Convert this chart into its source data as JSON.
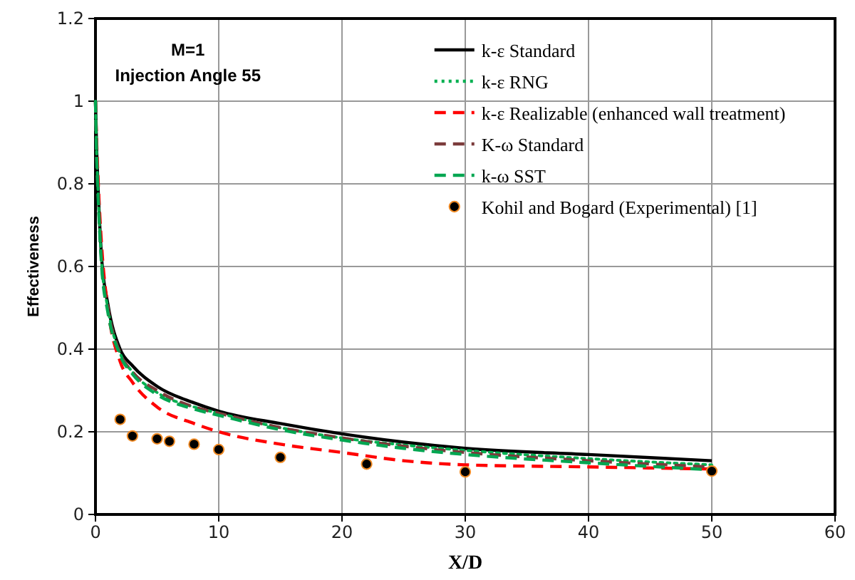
{
  "chart_data": {
    "type": "line",
    "title": "M=1",
    "subtitle": "Injection Angle 55",
    "xlabel": "X/D",
    "ylabel": "Effectiveness",
    "xlim": [
      0,
      60
    ],
    "xticks": [
      0,
      10,
      20,
      30,
      40,
      50,
      60
    ],
    "ylim": [
      0,
      1.2
    ],
    "yticks": [
      0,
      0.2,
      0.4,
      0.6,
      0.8,
      1,
      1.2
    ],
    "grid": true,
    "legend": "top right",
    "series": [
      {
        "name": "k-ε  Standard",
        "color": "#000000",
        "line_style": "solid",
        "x": [
          0,
          0.1,
          0.2,
          0.5,
          1,
          2,
          3,
          5,
          8,
          10,
          15,
          20,
          25,
          30,
          40,
          50
        ],
        "values": [
          1.0,
          0.88,
          0.8,
          0.62,
          0.51,
          0.4,
          0.36,
          0.31,
          0.27,
          0.25,
          0.22,
          0.195,
          0.175,
          0.16,
          0.145,
          0.13
        ]
      },
      {
        "name": "k-ε RNG",
        "color": "#00b050",
        "line_style": "dotted",
        "x": [
          0,
          0.1,
          0.2,
          0.5,
          1,
          2,
          3,
          5,
          8,
          10,
          15,
          20,
          25,
          30,
          40,
          50
        ],
        "values": [
          1.0,
          0.87,
          0.79,
          0.61,
          0.5,
          0.39,
          0.345,
          0.295,
          0.26,
          0.245,
          0.21,
          0.185,
          0.168,
          0.155,
          0.135,
          0.12
        ]
      },
      {
        "name": "k-ε  Realizable (enhanced wall treatment)",
        "color": "#ff0000",
        "line_style": "dashed",
        "x": [
          0,
          0.1,
          0.2,
          0.5,
          1,
          2,
          3,
          5,
          8,
          10,
          15,
          20,
          25,
          30,
          40,
          50
        ],
        "values": [
          1.0,
          0.9,
          0.82,
          0.65,
          0.5,
          0.37,
          0.32,
          0.26,
          0.22,
          0.2,
          0.17,
          0.15,
          0.13,
          0.12,
          0.115,
          0.11
        ]
      },
      {
        "name": "K-ω Standard",
        "color": "#7b3b3b",
        "line_style": "dashed",
        "x": [
          0,
          0.1,
          0.2,
          0.5,
          1,
          2,
          3,
          5,
          8,
          10,
          15,
          20,
          25,
          30,
          40,
          50
        ],
        "values": [
          1.0,
          0.87,
          0.79,
          0.61,
          0.5,
          0.39,
          0.345,
          0.3,
          0.26,
          0.245,
          0.21,
          0.185,
          0.165,
          0.15,
          0.13,
          0.115
        ]
      },
      {
        "name": "k-ω  SST",
        "color": "#00a651",
        "line_style": "dashed",
        "x": [
          0,
          0.1,
          0.2,
          0.5,
          1,
          2,
          3,
          5,
          8,
          10,
          15,
          20,
          25,
          30,
          40,
          50
        ],
        "values": [
          1.0,
          0.86,
          0.78,
          0.6,
          0.49,
          0.385,
          0.34,
          0.29,
          0.255,
          0.24,
          0.205,
          0.18,
          0.16,
          0.145,
          0.125,
          0.108
        ]
      },
      {
        "name": "Kohil and Bogard (Experimental) [1]",
        "type": "scatter",
        "marker": "circle",
        "color": "#000000",
        "x": [
          2,
          3,
          5,
          6,
          8,
          10,
          15,
          22,
          30,
          50
        ],
        "values": [
          0.23,
          0.19,
          0.183,
          0.177,
          0.17,
          0.157,
          0.138,
          0.122,
          0.103,
          0.105
        ]
      }
    ]
  }
}
